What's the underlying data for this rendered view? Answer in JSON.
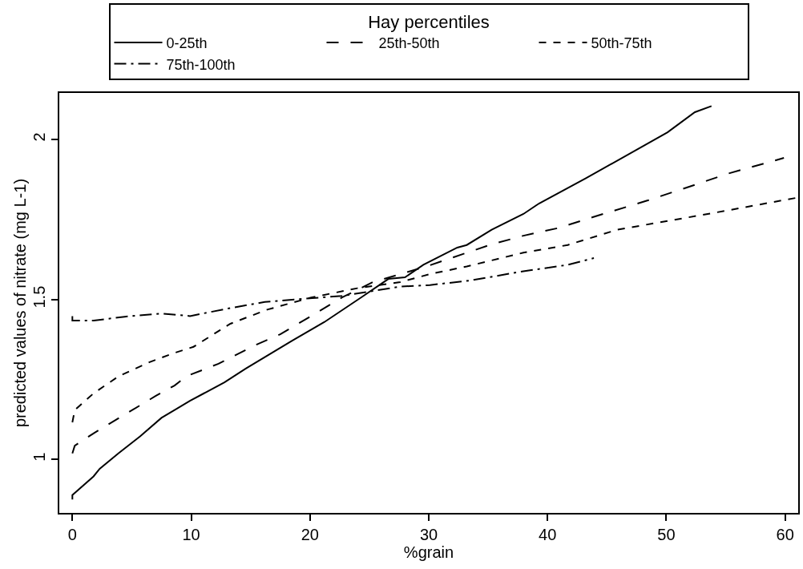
{
  "chart_data": {
    "type": "line",
    "xlabel": "%grain",
    "ylabel": "predicted values of nitrate (mg L-1)",
    "legend_title": "Hay percentiles",
    "legend": "top",
    "marker": "none",
    "xlim": [
      -1.1,
      61.1
    ],
    "xticks": [
      0,
      10,
      20,
      30,
      40,
      50,
      60
    ],
    "ylim": [
      0.833,
      2.145
    ],
    "yticks": [
      1,
      1.5,
      2
    ],
    "series": [
      {
        "name": "0-25th",
        "color": "#000000",
        "line_style": "solid",
        "x": [
          0,
          0,
          1.78,
          2.3,
          3.87,
          5.7,
          7.5,
          9.9,
          12.8,
          14.6,
          18.5,
          21.2,
          24.3,
          26.6,
          28,
          29.55,
          32.4,
          33.2,
          35.3,
          37.97,
          39.3,
          43.2,
          50.1,
          52.4,
          53.8
        ],
        "values": [
          0.875,
          0.889,
          0.947,
          0.971,
          1.019,
          1.072,
          1.13,
          1.183,
          1.241,
          1.284,
          1.371,
          1.429,
          1.506,
          1.564,
          1.569,
          1.608,
          1.662,
          1.67,
          1.718,
          1.767,
          1.8,
          1.878,
          2.022,
          2.085,
          2.104
        ]
      },
      {
        "name": "25th-50th",
        "color": "#000000",
        "line_style": "dashed",
        "x": [
          0,
          0.2,
          1.8,
          4.4,
          7.0,
          8.6,
          9.6,
          12.3,
          15.4,
          17.5,
          20.1,
          22.7,
          25.3,
          27.6,
          29.8,
          31.7,
          35.3,
          37.97,
          40.9,
          43.8,
          48.5,
          52.4,
          55.1,
          59.9
        ],
        "values": [
          1.019,
          1.043,
          1.082,
          1.14,
          1.198,
          1.231,
          1.26,
          1.299,
          1.357,
          1.391,
          1.448,
          1.506,
          1.554,
          1.579,
          1.603,
          1.627,
          1.672,
          1.699,
          1.723,
          1.757,
          1.81,
          1.858,
          1.892,
          1.942
        ]
      },
      {
        "name": "50th-75th",
        "color": "#000000",
        "line_style": "dotted",
        "x": [
          0,
          0.2,
          1.8,
          3.9,
          6.5,
          8.6,
          10.2,
          13.3,
          16.4,
          20.1,
          24.0,
          27.6,
          30.1,
          33.2,
          37.97,
          41.7,
          45.9,
          49.8,
          53.8,
          60.9
        ],
        "values": [
          1.116,
          1.154,
          1.207,
          1.26,
          1.304,
          1.333,
          1.352,
          1.424,
          1.468,
          1.506,
          1.535,
          1.554,
          1.579,
          1.603,
          1.646,
          1.67,
          1.718,
          1.743,
          1.769,
          1.817
        ]
      },
      {
        "name": "75th-100th",
        "color": "#000000",
        "line_style": "dashdot",
        "x": [
          0,
          0,
          1.8,
          4.4,
          7.5,
          9.9,
          13.3,
          16.2,
          19.1,
          22.7,
          27.6,
          30.1,
          33.5,
          37.97,
          41.7,
          43.9
        ],
        "values": [
          1.448,
          1.434,
          1.434,
          1.446,
          1.456,
          1.448,
          1.473,
          1.492,
          1.501,
          1.511,
          1.54,
          1.545,
          1.559,
          1.588,
          1.608,
          1.629
        ]
      }
    ]
  }
}
